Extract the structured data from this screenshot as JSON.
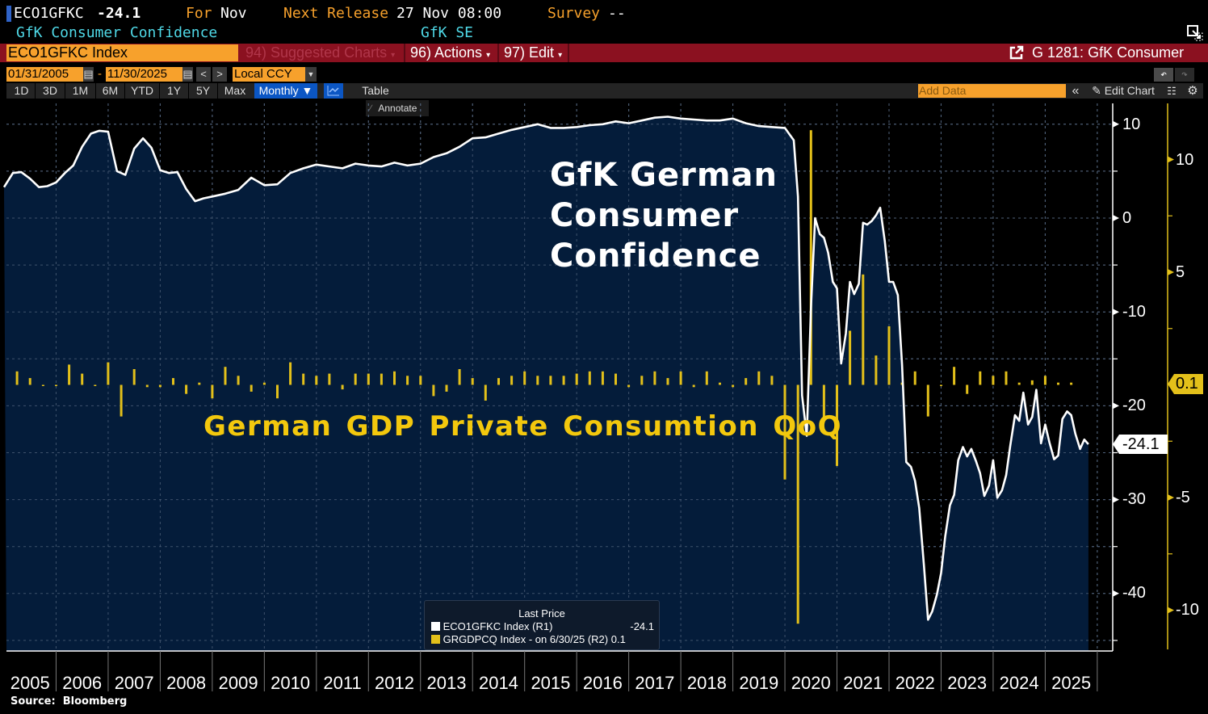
{
  "header": {
    "ticker": "ECO1GFKC",
    "last_value": "-24.1",
    "for_label": "For",
    "for_value": "Nov",
    "next_release_label": "Next Release",
    "next_release_value": "27 Nov 08:00",
    "survey_label": "Survey",
    "survey_value": "--",
    "description": "GfK Consumer Confidence",
    "source_org": "GfK SE"
  },
  "menubar": {
    "security_input": "ECO1GFKC Index",
    "suggested_charts": "94) Suggested Charts",
    "actions": "96) Actions",
    "edit": "97) Edit",
    "chart_id": "G 1281: GfK Consumer"
  },
  "range": {
    "start_date": "01/31/2005",
    "dash": "-",
    "end_date": "11/30/2025",
    "prev": "<",
    "next": ">",
    "currency": "Local CCY"
  },
  "toolbar": {
    "periods": [
      "1D",
      "3D",
      "1M",
      "6M",
      "YTD",
      "1Y",
      "5Y",
      "Max"
    ],
    "frequency": "Monthly ▼",
    "table": "Table",
    "add_data_placeholder": "Add Data",
    "edit_chart": "Edit Chart",
    "annotate": "Annotate"
  },
  "annotations": {
    "title_line1": "GfK German",
    "title_line2": "Consumer",
    "title_line3": "Confidence",
    "gdp_label": "German GDP Private Consumtion QoQ"
  },
  "legend": {
    "title": "Last Price",
    "items": [
      {
        "label": "ECO1GFKC Index  (R1)",
        "value": "-24.1",
        "color": "#ffffff"
      },
      {
        "label": "GRGDPCQ Index -  on 6/30/25  (R2)",
        "value": "0.1",
        "color": "#e3c01a"
      }
    ]
  },
  "footer": {
    "source": "Source:  Bloomberg"
  },
  "colors": {
    "area_fill": "#041c3a",
    "line": "#ffffff",
    "bars": "#e3c01a",
    "menubar": "#8b1120",
    "accent_orange": "#f7a12c",
    "accent_cyan": "#4fd8e6"
  },
  "chart_data": {
    "type": "line",
    "title": "GfK German Consumer Confidence vs German GDP Private Consumption QoQ",
    "xlabel": "",
    "x_ticks": [
      "2005",
      "2006",
      "2007",
      "2008",
      "2009",
      "2010",
      "2011",
      "2012",
      "2013",
      "2014",
      "2015",
      "2016",
      "2017",
      "2018",
      "2019",
      "2020",
      "2021",
      "2022",
      "2023",
      "2024",
      "2025"
    ],
    "x_range": [
      2005.0,
      2026.0
    ],
    "grid": true,
    "legend_position": "bottom-center",
    "axes": {
      "R1": {
        "ticks": [
          10,
          0,
          -10,
          -20,
          -30,
          -40
        ],
        "range": [
          -45,
          12
        ],
        "last_value_tag": "-24.1"
      },
      "R2": {
        "ticks": [
          10,
          5,
          -5,
          -10
        ],
        "range": [
          -12.3,
          14
        ],
        "last_value_tag": "0.1"
      }
    },
    "series": [
      {
        "name": "ECO1GFKC Index (R1)",
        "axis": "R1",
        "type": "area",
        "x": [
          2005.0,
          2005.17,
          2005.33,
          2005.5,
          2005.67,
          2005.83,
          2006.0,
          2006.17,
          2006.33,
          2006.5,
          2006.67,
          2006.83,
          2007.0,
          2007.17,
          2007.33,
          2007.5,
          2007.67,
          2007.83,
          2008.0,
          2008.17,
          2008.33,
          2008.5,
          2008.67,
          2008.83,
          2009.0,
          2009.25,
          2009.5,
          2009.75,
          2010.0,
          2010.25,
          2010.5,
          2010.75,
          2011.0,
          2011.25,
          2011.5,
          2011.75,
          2012.0,
          2012.25,
          2012.5,
          2012.75,
          2013.0,
          2013.25,
          2013.5,
          2013.75,
          2014.0,
          2014.25,
          2014.5,
          2014.75,
          2015.0,
          2015.25,
          2015.5,
          2015.75,
          2016.0,
          2016.25,
          2016.5,
          2016.75,
          2017.0,
          2017.25,
          2017.5,
          2017.75,
          2018.0,
          2018.25,
          2018.5,
          2018.75,
          2019.0,
          2019.25,
          2019.5,
          2019.75,
          2020.0,
          2020.17,
          2020.25,
          2020.33,
          2020.42,
          2020.5,
          2020.58,
          2020.67,
          2020.75,
          2020.83,
          2020.92,
          2021.0,
          2021.08,
          2021.17,
          2021.25,
          2021.33,
          2021.42,
          2021.5,
          2021.58,
          2021.67,
          2021.75,
          2021.83,
          2021.92,
          2022.0,
          2022.08,
          2022.17,
          2022.25,
          2022.33,
          2022.42,
          2022.5,
          2022.58,
          2022.67,
          2022.75,
          2022.83,
          2022.92,
          2023.0,
          2023.08,
          2023.17,
          2023.25,
          2023.33,
          2023.42,
          2023.5,
          2023.58,
          2023.67,
          2023.75,
          2023.83,
          2023.92,
          2024.0,
          2024.08,
          2024.17,
          2024.25,
          2024.33,
          2024.42,
          2024.5,
          2024.58,
          2024.67,
          2024.75,
          2024.83,
          2024.92,
          2025.0,
          2025.08,
          2025.17,
          2025.25,
          2025.33,
          2025.42,
          2025.5,
          2025.58,
          2025.67,
          2025.75,
          2025.83
        ],
        "values": [
          3.3,
          4.8,
          4.9,
          4.2,
          3.3,
          3.4,
          3.8,
          4.8,
          5.6,
          7.6,
          9.0,
          9.3,
          9.2,
          5.0,
          4.6,
          7.4,
          8.5,
          7.5,
          5.1,
          4.8,
          4.9,
          3.1,
          1.8,
          2.1,
          2.3,
          2.6,
          3.0,
          4.3,
          3.5,
          3.6,
          4.8,
          5.3,
          5.7,
          5.5,
          5.3,
          5.8,
          5.6,
          5.5,
          5.9,
          5.6,
          5.8,
          6.5,
          6.9,
          7.6,
          8.5,
          8.6,
          9.0,
          9.4,
          9.7,
          10.0,
          9.6,
          9.6,
          9.7,
          9.9,
          10.0,
          10.3,
          10.1,
          10.4,
          10.7,
          10.8,
          10.6,
          10.5,
          10.4,
          10.4,
          10.6,
          10.1,
          9.8,
          9.7,
          9.6,
          8.3,
          2.3,
          -18.9,
          -23.2,
          -9.6,
          0.0,
          -1.7,
          -2.1,
          -3.7,
          -6.8,
          -7.5,
          -15.5,
          -12.3,
          -6.8,
          -8.1,
          -7.0,
          -0.5,
          -0.7,
          -0.3,
          0.3,
          1.1,
          -2.5,
          -6.8,
          -6.8,
          -8.2,
          -15.6,
          -26.0,
          -26.5,
          -28.0,
          -30.9,
          -37.0,
          -42.8,
          -41.9,
          -40.1,
          -37.8,
          -33.9,
          -30.6,
          -29.5,
          -25.8,
          -24.4,
          -25.4,
          -24.6,
          -25.9,
          -27.2,
          -29.6,
          -28.5,
          -25.8,
          -29.8,
          -29.0,
          -27.4,
          -24.2,
          -21.0,
          -21.6,
          -18.6,
          -22.0,
          -21.2,
          -18.3,
          -24.0,
          -22.0,
          -23.9,
          -25.7,
          -25.3,
          -21.4,
          -20.6,
          -21.0,
          -23.0,
          -24.6,
          -23.6,
          -24.1
        ]
      },
      {
        "name": "GRGDPCQ Index (R2)",
        "axis": "R2",
        "type": "bar",
        "x": [
          2005.25,
          2005.5,
          2005.75,
          2006.0,
          2006.25,
          2006.5,
          2006.75,
          2007.0,
          2007.25,
          2007.5,
          2007.75,
          2008.0,
          2008.25,
          2008.5,
          2008.75,
          2009.0,
          2009.25,
          2009.5,
          2009.75,
          2010.0,
          2010.25,
          2010.5,
          2010.75,
          2011.0,
          2011.25,
          2011.5,
          2011.75,
          2012.0,
          2012.25,
          2012.5,
          2012.75,
          2013.0,
          2013.25,
          2013.5,
          2013.75,
          2014.0,
          2014.25,
          2014.5,
          2014.75,
          2015.0,
          2015.25,
          2015.5,
          2015.75,
          2016.0,
          2016.25,
          2016.5,
          2016.75,
          2017.0,
          2017.25,
          2017.5,
          2017.75,
          2018.0,
          2018.25,
          2018.5,
          2018.75,
          2019.0,
          2019.25,
          2019.5,
          2019.75,
          2020.0,
          2020.25,
          2020.5,
          2020.75,
          2021.0,
          2021.25,
          2021.5,
          2021.75,
          2022.0,
          2022.25,
          2022.5,
          2022.75,
          2023.0,
          2023.25,
          2023.5,
          2023.75,
          2024.0,
          2024.25,
          2024.5,
          2024.75,
          2025.0,
          2025.25,
          2025.5
        ],
        "values": [
          0.6,
          0.3,
          0.0,
          0.0,
          0.9,
          0.5,
          0.0,
          1.0,
          -1.4,
          0.7,
          -0.1,
          -0.1,
          0.3,
          -0.4,
          0.1,
          -0.6,
          0.8,
          0.4,
          -0.3,
          0.1,
          -0.6,
          1.0,
          0.5,
          0.4,
          0.5,
          -0.2,
          0.5,
          0.5,
          0.5,
          0.6,
          0.4,
          0.4,
          -0.5,
          -0.3,
          0.7,
          0.3,
          -0.7,
          0.3,
          0.4,
          0.6,
          0.4,
          0.4,
          0.4,
          0.5,
          0.6,
          0.6,
          0.5,
          -0.1,
          0.4,
          0.6,
          0.3,
          0.6,
          -0.1,
          0.6,
          0.1,
          -0.1,
          0.3,
          0.6,
          0.4,
          -4.2,
          -10.6,
          11.3,
          -1.6,
          -3.6,
          2.4,
          4.9,
          1.3,
          2.6,
          0.1,
          0.6,
          -1.4,
          0.0,
          0.8,
          -0.4,
          0.6,
          0.4,
          0.6,
          0.1,
          0.2,
          0.4,
          0.1,
          0.1
        ]
      }
    ]
  }
}
